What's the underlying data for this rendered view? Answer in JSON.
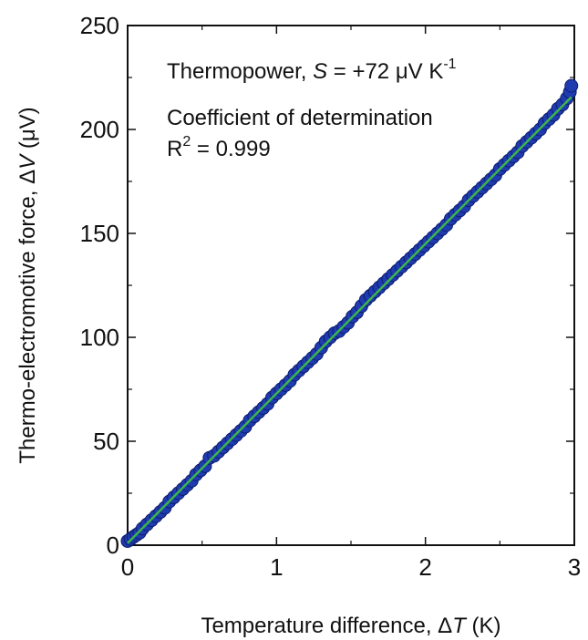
{
  "chart_data": {
    "type": "scatter",
    "xlabel": {
      "prefix": "Temperature difference, ",
      "sym": "Δ",
      "var": "T",
      "suffix": " (K)"
    },
    "ylabel": {
      "prefix": "Thermo-electromotive force, ",
      "sym": "Δ",
      "var": "V",
      "suffix": " (μV)"
    },
    "xlim": [
      0,
      3
    ],
    "ylim": [
      0,
      250
    ],
    "x_ticks": [
      0,
      1,
      2,
      3
    ],
    "y_ticks": [
      0,
      50,
      100,
      150,
      200,
      250
    ],
    "grid": false,
    "colors": {
      "points": "#1f3bb0",
      "points_edge": "#0d1d6e",
      "fit_line": "#3cb54a"
    },
    "annotations": {
      "thermopower": {
        "prefix": "Thermopower, ",
        "var": "S",
        "middle": " = +72 μV K",
        "sup": "-1"
      },
      "coef_label": "Coefficient of determination",
      "r2": {
        "base": "R",
        "sup": "2",
        "value": " = 0.999"
      }
    },
    "fit": {
      "slope": 72,
      "intercept": 1,
      "x_range": [
        0,
        2.98
      ]
    },
    "series": [
      {
        "values": [
          [
            0.0,
            2
          ],
          [
            0.02,
            3
          ],
          [
            0.04,
            4
          ],
          [
            0.06,
            5
          ],
          [
            0.08,
            6
          ],
          [
            0.1,
            8
          ],
          [
            0.13,
            10
          ],
          [
            0.16,
            12
          ],
          [
            0.19,
            14
          ],
          [
            0.22,
            16
          ],
          [
            0.25,
            18
          ],
          [
            0.28,
            21
          ],
          [
            0.31,
            23
          ],
          [
            0.34,
            25
          ],
          [
            0.37,
            27
          ],
          [
            0.4,
            29
          ],
          [
            0.43,
            31
          ],
          [
            0.46,
            34
          ],
          [
            0.49,
            36
          ],
          [
            0.52,
            38
          ],
          [
            0.55,
            42
          ],
          [
            0.58,
            43
          ],
          [
            0.61,
            45
          ],
          [
            0.64,
            47
          ],
          [
            0.67,
            49
          ],
          [
            0.7,
            51
          ],
          [
            0.73,
            53
          ],
          [
            0.76,
            55
          ],
          [
            0.79,
            57
          ],
          [
            0.82,
            60
          ],
          [
            0.85,
            62
          ],
          [
            0.88,
            64
          ],
          [
            0.91,
            66
          ],
          [
            0.94,
            68
          ],
          [
            0.97,
            71
          ],
          [
            1.0,
            73
          ],
          [
            1.03,
            75
          ],
          [
            1.06,
            77
          ],
          [
            1.09,
            79
          ],
          [
            1.12,
            82
          ],
          [
            1.15,
            84
          ],
          [
            1.18,
            86
          ],
          [
            1.21,
            88
          ],
          [
            1.24,
            90
          ],
          [
            1.27,
            92
          ],
          [
            1.3,
            95
          ],
          [
            1.33,
            98
          ],
          [
            1.36,
            100
          ],
          [
            1.39,
            102
          ],
          [
            1.42,
            103
          ],
          [
            1.45,
            105
          ],
          [
            1.48,
            107
          ],
          [
            1.51,
            110
          ],
          [
            1.54,
            112
          ],
          [
            1.57,
            115
          ],
          [
            1.6,
            118
          ],
          [
            1.63,
            120
          ],
          [
            1.66,
            122
          ],
          [
            1.69,
            124
          ],
          [
            1.72,
            126
          ],
          [
            1.75,
            128
          ],
          [
            1.78,
            130
          ],
          [
            1.81,
            132
          ],
          [
            1.84,
            134
          ],
          [
            1.87,
            136
          ],
          [
            1.9,
            138
          ],
          [
            1.93,
            140
          ],
          [
            1.96,
            142
          ],
          [
            1.99,
            144
          ],
          [
            2.02,
            146
          ],
          [
            2.05,
            148
          ],
          [
            2.08,
            150
          ],
          [
            2.11,
            152
          ],
          [
            2.14,
            154
          ],
          [
            2.17,
            157
          ],
          [
            2.2,
            159
          ],
          [
            2.23,
            161
          ],
          [
            2.26,
            163
          ],
          [
            2.29,
            166
          ],
          [
            2.32,
            168
          ],
          [
            2.35,
            170
          ],
          [
            2.38,
            172
          ],
          [
            2.41,
            174
          ],
          [
            2.44,
            176
          ],
          [
            2.47,
            178
          ],
          [
            2.5,
            181
          ],
          [
            2.53,
            183
          ],
          [
            2.56,
            185
          ],
          [
            2.59,
            187
          ],
          [
            2.62,
            189
          ],
          [
            2.65,
            192
          ],
          [
            2.68,
            194
          ],
          [
            2.71,
            196
          ],
          [
            2.74,
            198
          ],
          [
            2.77,
            200
          ],
          [
            2.8,
            203
          ],
          [
            2.83,
            205
          ],
          [
            2.86,
            207
          ],
          [
            2.89,
            210
          ],
          [
            2.92,
            212
          ],
          [
            2.95,
            215
          ],
          [
            2.97,
            218
          ],
          [
            2.98,
            221
          ]
        ]
      }
    ]
  }
}
